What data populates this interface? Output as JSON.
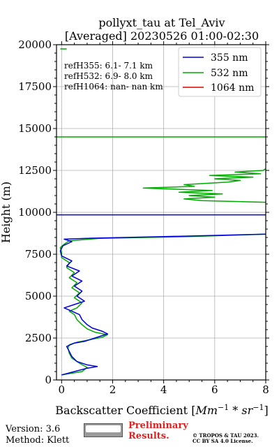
{
  "chart_data": {
    "type": "line",
    "title_line1": "pollyxt_tau at Tel_Aviv",
    "title_line2": "[Averaged] 20230526 01:00-02:30",
    "xlabel": "Backscatter Coefficient",
    "xlabel_unit_base": "Mm",
    "xlabel_unit_exp1": "−1",
    "xlabel_unit_mid": " * sr",
    "xlabel_unit_exp2": "−1",
    "ylabel": "Height (m)",
    "xlim": [
      -0.2,
      8
    ],
    "ylim": [
      0,
      20000
    ],
    "xticks": [
      "0",
      "2",
      "4",
      "6",
      "8"
    ],
    "xtick_values": [
      0,
      2,
      4,
      6,
      8
    ],
    "yticks": [
      "0",
      "2500",
      "5000",
      "7500",
      "10000",
      "12500",
      "15000",
      "17500",
      "20000"
    ],
    "ytick_values": [
      0,
      2500,
      5000,
      7500,
      10000,
      12500,
      15000,
      17500,
      20000
    ],
    "grid": true,
    "legend_position": "top-right",
    "annotations": [
      "refH355:  6.1- 7.1 km",
      "refH532:  6.9- 8.0 km",
      "refH1064:  nan- nan km"
    ],
    "series": [
      {
        "name": "355 nm",
        "color": "#0000dd",
        "points": [
          [
            0.0,
            300
          ],
          [
            0.5,
            500
          ],
          [
            1.0,
            700
          ],
          [
            1.4,
            800
          ],
          [
            1.0,
            900
          ],
          [
            0.6,
            1100
          ],
          [
            0.4,
            1400
          ],
          [
            0.3,
            1700
          ],
          [
            0.2,
            2000
          ],
          [
            0.5,
            2200
          ],
          [
            0.9,
            2300
          ],
          [
            1.2,
            2450
          ],
          [
            1.5,
            2600
          ],
          [
            1.8,
            2750
          ],
          [
            1.6,
            2900
          ],
          [
            1.2,
            3100
          ],
          [
            1.0,
            3300
          ],
          [
            0.8,
            3600
          ],
          [
            0.7,
            3900
          ],
          [
            0.4,
            4100
          ],
          [
            0.1,
            4300
          ],
          [
            0.5,
            4500
          ],
          [
            0.9,
            4700
          ],
          [
            0.6,
            5000
          ],
          [
            0.8,
            5300
          ],
          [
            0.5,
            5600
          ],
          [
            0.8,
            5900
          ],
          [
            0.4,
            6200
          ],
          [
            0.7,
            6500
          ],
          [
            0.2,
            6800
          ],
          [
            0.4,
            7100
          ],
          [
            0.0,
            7400
          ],
          [
            -0.05,
            7700
          ],
          [
            0.05,
            8000
          ],
          [
            0.4,
            8250
          ],
          [
            0.1,
            8400
          ],
          [
            1.0,
            8450
          ],
          [
            4.0,
            8550
          ],
          [
            8.0,
            8700
          ]
        ],
        "hlines": [
          9850
        ]
      },
      {
        "name": "532 nm",
        "color": "#00aa00",
        "points": [
          [
            0.0,
            300
          ],
          [
            0.8,
            500
          ],
          [
            1.0,
            750
          ],
          [
            0.7,
            1000
          ],
          [
            0.4,
            1300
          ],
          [
            0.3,
            1600
          ],
          [
            0.25,
            1900
          ],
          [
            0.3,
            2100
          ],
          [
            0.6,
            2250
          ],
          [
            1.1,
            2400
          ],
          [
            1.6,
            2550
          ],
          [
            1.8,
            2700
          ],
          [
            1.3,
            2850
          ],
          [
            1.0,
            3050
          ],
          [
            0.8,
            3300
          ],
          [
            0.6,
            3600
          ],
          [
            0.5,
            3900
          ],
          [
            0.3,
            4100
          ],
          [
            0.6,
            4300
          ],
          [
            0.8,
            4600
          ],
          [
            0.5,
            4900
          ],
          [
            0.7,
            5200
          ],
          [
            0.4,
            5500
          ],
          [
            0.6,
            5800
          ],
          [
            0.3,
            6100
          ],
          [
            0.5,
            6400
          ],
          [
            0.2,
            6700
          ],
          [
            0.3,
            7000
          ],
          [
            0.0,
            7300
          ],
          [
            0.0,
            7600
          ],
          [
            -0.05,
            7900
          ],
          [
            0.1,
            8100
          ],
          [
            0.3,
            8300
          ],
          [
            1.5,
            8450
          ],
          [
            5.0,
            8550
          ],
          [
            8.0,
            8700
          ]
        ],
        "upper_points": [
          [
            8.0,
            10600
          ],
          [
            5.5,
            10700
          ],
          [
            4.8,
            10800
          ],
          [
            6.0,
            10900
          ],
          [
            5.0,
            11000
          ],
          [
            6.3,
            11100
          ],
          [
            4.6,
            11200
          ],
          [
            5.9,
            11300
          ],
          [
            3.2,
            11450
          ],
          [
            5.2,
            11550
          ],
          [
            4.8,
            11650
          ],
          [
            6.5,
            11800
          ],
          [
            7.0,
            11900
          ],
          [
            6.0,
            12000
          ],
          [
            7.5,
            12100
          ],
          [
            5.8,
            12200
          ],
          [
            7.8,
            12300
          ],
          [
            6.8,
            12400
          ],
          [
            7.9,
            12500
          ],
          [
            8.0,
            12600
          ]
        ],
        "hlines": [
          14500
        ],
        "stub": [
          [
            -0.05,
            19750
          ],
          [
            0.2,
            19750
          ]
        ]
      },
      {
        "name": "1064 nm",
        "color": "#dd0000",
        "points": []
      }
    ]
  },
  "footer": {
    "version": "Version: 3.6",
    "method": "Method: Klett",
    "cc_badge": "CC BY SA",
    "preliminary_1": "Preliminary",
    "preliminary_2": "Results.",
    "copyright_1": "© TROPOS & TAU 2023.",
    "copyright_2": "CC BY SA 4.0 License."
  }
}
